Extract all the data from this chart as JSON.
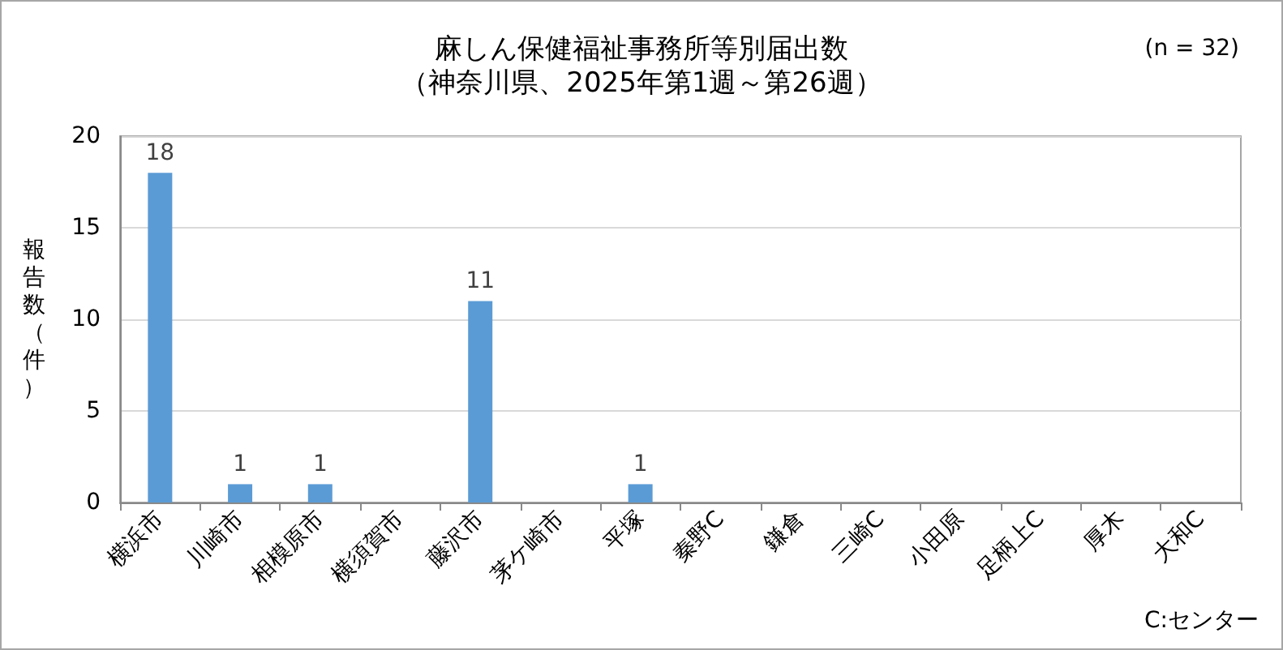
{
  "chart_data": {
    "type": "bar",
    "title": "麻しん保健福祉事務所等別届出数",
    "subtitle": "（神奈川県、2025年第1週～第26週）",
    "ylabel": "報告数（件）",
    "annotations": [
      "(n = 32)",
      "C:センター"
    ],
    "categories": [
      "横浜市",
      "川崎市",
      "相模原市",
      "横須賀市",
      "藤沢市",
      "茅ケ崎市",
      "平塚",
      "秦野C",
      "鎌倉",
      "三崎C",
      "小田原",
      "足柄上C",
      "厚木",
      "大和C"
    ],
    "values": [
      18,
      1,
      1,
      0,
      11,
      0,
      1,
      0,
      0,
      0,
      0,
      0,
      0,
      0
    ],
    "value_labels": [
      "18",
      "1",
      "1",
      null,
      "11",
      null,
      "1",
      null,
      null,
      null,
      null,
      null,
      null,
      null
    ],
    "color": "#5b9bd5",
    "ylim": [
      0,
      20
    ],
    "yticks": [
      0,
      5,
      10,
      15,
      20
    ],
    "grid": "y"
  }
}
